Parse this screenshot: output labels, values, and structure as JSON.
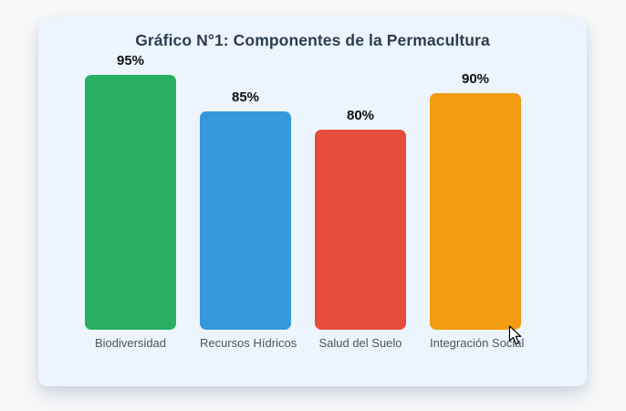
{
  "page": {
    "background_color": "#f8f9fa"
  },
  "card": {
    "background_color": "#ecf5fd"
  },
  "chart_data": {
    "type": "bar",
    "title": "Gráfico N°1: Componentes de la Permacultura",
    "categories": [
      "Biodiversidad",
      "Recursos Hídricos",
      "Salud del Suelo",
      "Integración Social"
    ],
    "values": [
      95,
      85,
      80,
      90
    ],
    "value_labels": [
      "95%",
      "85%",
      "80%",
      "90%"
    ],
    "bar_colors": [
      "#27ae60",
      "#3498db",
      "#e74c3c",
      "#f39c12"
    ],
    "unit": "%",
    "ylim": [
      0,
      100
    ],
    "xlabel": "",
    "ylabel": "",
    "grid": false,
    "legend": false,
    "title_color": "#2c3e50",
    "value_label_color": "#111111",
    "category_label_color": "#4d5563"
  },
  "cursor": {
    "type": "arrow"
  }
}
